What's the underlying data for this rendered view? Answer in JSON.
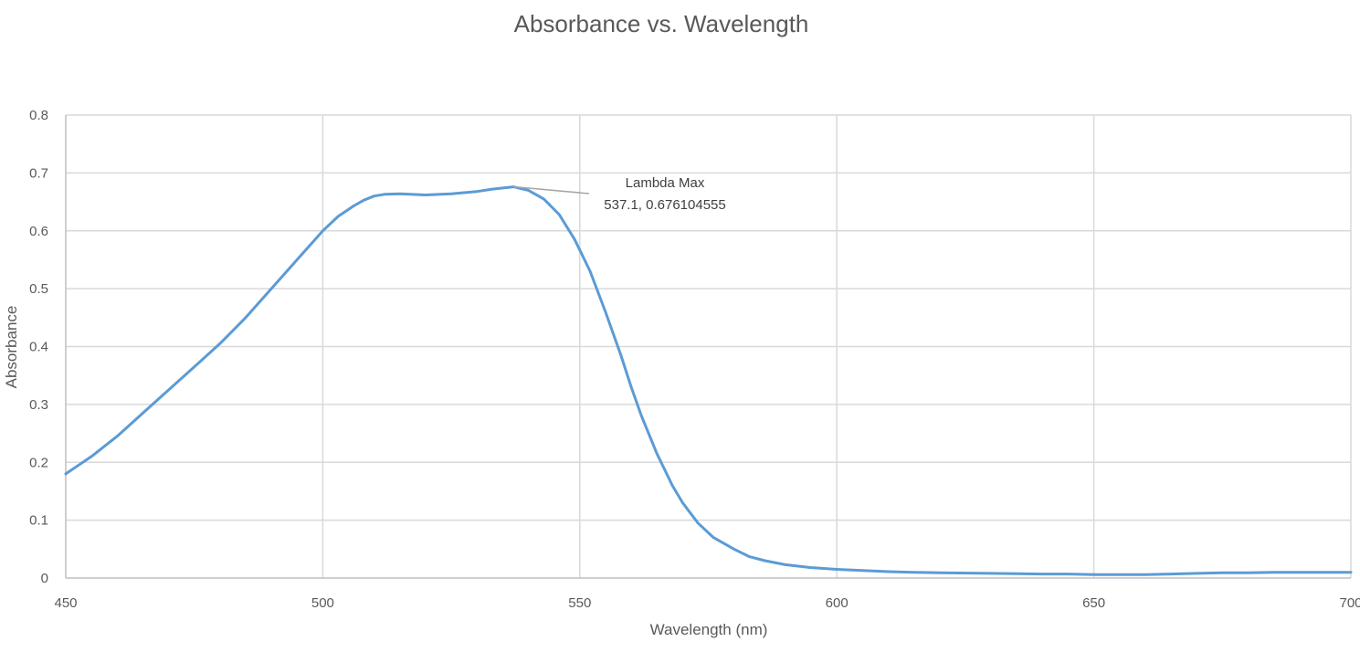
{
  "chart_data": {
    "type": "line",
    "title": "Absorbance vs. Wavelength",
    "xlabel": "Wavelength (nm)",
    "ylabel": "Absorbance",
    "xlim": [
      450,
      700
    ],
    "ylim": [
      0,
      0.8
    ],
    "x_ticks": [
      450,
      500,
      550,
      600,
      650,
      700
    ],
    "y_ticks": [
      0,
      0.1,
      0.2,
      0.3,
      0.4,
      0.5,
      0.6,
      0.7,
      0.8
    ],
    "x_tick_labels": [
      "450",
      "500",
      "550",
      "600",
      "650",
      "700"
    ],
    "y_tick_labels": [
      "0",
      "0.1",
      "0.2",
      "0.3",
      "0.4",
      "0.5",
      "0.6",
      "0.7",
      "0.8"
    ],
    "grid": true,
    "legend": "none",
    "series_color": "#5B9BD5",
    "annotation": {
      "line1": "Lambda Max",
      "line2": "537.1, 0.676104555",
      "x": 537.1,
      "y": 0.676104555
    },
    "series": [
      {
        "x": [
          450,
          455,
          460,
          465,
          470,
          475,
          480,
          485,
          490,
          495,
          500,
          503,
          506,
          508,
          510,
          512,
          515,
          520,
          525,
          530,
          533,
          535,
          537.1,
          540,
          543,
          546,
          549,
          552,
          555,
          558,
          560,
          562,
          565,
          568,
          570,
          573,
          576,
          580,
          583,
          586,
          590,
          595,
          600,
          605,
          610,
          615,
          620,
          630,
          640,
          645,
          650,
          655,
          660,
          665,
          670,
          675,
          680,
          685,
          690,
          695,
          700
        ],
        "y": [
          0.18,
          0.21,
          0.245,
          0.285,
          0.325,
          0.365,
          0.405,
          0.45,
          0.5,
          0.55,
          0.6,
          0.625,
          0.643,
          0.653,
          0.66,
          0.663,
          0.664,
          0.662,
          0.664,
          0.668,
          0.672,
          0.674,
          0.676,
          0.67,
          0.655,
          0.628,
          0.585,
          0.53,
          0.46,
          0.385,
          0.33,
          0.28,
          0.215,
          0.16,
          0.13,
          0.095,
          0.07,
          0.05,
          0.037,
          0.03,
          0.023,
          0.018,
          0.015,
          0.013,
          0.011,
          0.01,
          0.009,
          0.008,
          0.007,
          0.007,
          0.006,
          0.006,
          0.006,
          0.007,
          0.008,
          0.009,
          0.009,
          0.01,
          0.01,
          0.01,
          0.01
        ]
      }
    ]
  }
}
